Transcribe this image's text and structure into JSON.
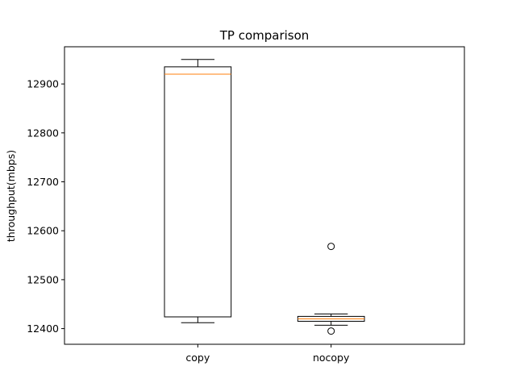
{
  "chart_data": {
    "type": "box",
    "title": "TP comparison",
    "xlabel": "",
    "ylabel": "throughput(mbps)",
    "categories": [
      "copy",
      "nocopy"
    ],
    "ylim": [
      12368,
      12976
    ],
    "yticks": [
      12400,
      12500,
      12600,
      12700,
      12800,
      12900
    ],
    "grid": false,
    "boxes": [
      {
        "label": "copy",
        "whisker_low": 12412,
        "q1": 12424,
        "median": 12920,
        "q3": 12935,
        "whisker_high": 12950,
        "outliers": []
      },
      {
        "label": "nocopy",
        "whisker_low": 12407,
        "q1": 12415,
        "median": 12420,
        "q3": 12425,
        "whisker_high": 12430,
        "outliers": [
          12568,
          12395
        ]
      }
    ],
    "colors": {
      "box": "#000000",
      "median": "#ff7f0e",
      "outlier": "#000000"
    }
  }
}
